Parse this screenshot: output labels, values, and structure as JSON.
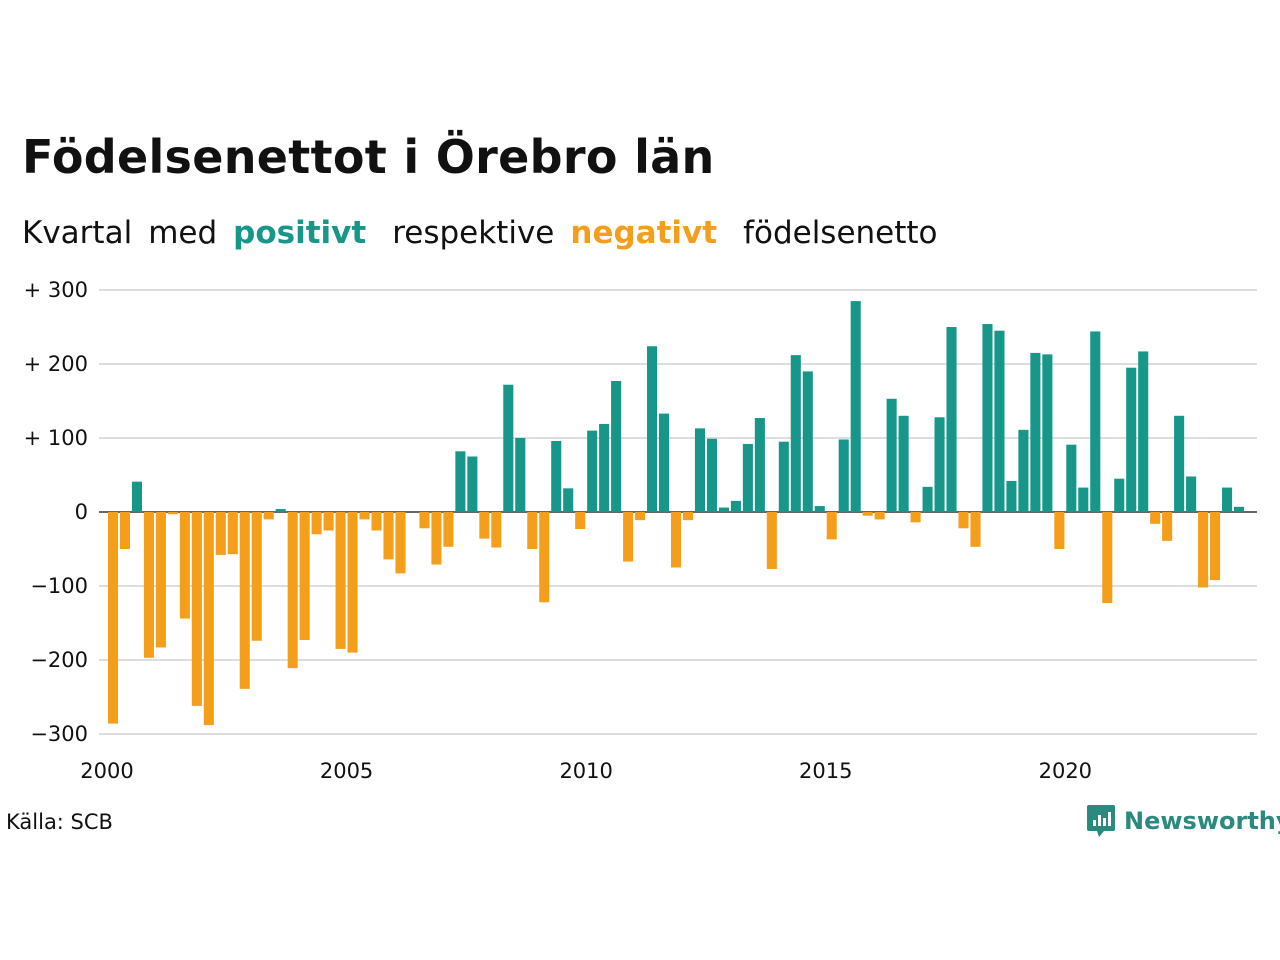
{
  "title": "Födelsenettot i Örebro län",
  "subtitle": {
    "part1": "Kvartal",
    "part2": "med",
    "positive": "positivt",
    "part3": "respektive",
    "negative": "negativt",
    "part4": "födelsenetto"
  },
  "source": "Källa: SCB",
  "brand": "Newsworthy",
  "colors": {
    "positive": "#17968a",
    "negative": "#f59e1c",
    "brand": "#2a8a80"
  },
  "chart_data": {
    "type": "bar",
    "ylim": [
      -300,
      300
    ],
    "y_ticks": [
      300,
      200,
      100,
      0,
      -100,
      -200,
      -300
    ],
    "y_tick_labels": [
      "+ 300",
      "+ 200",
      "+ 100",
      "0",
      "−100",
      "−200",
      "−300"
    ],
    "x_tick_labels": [
      "2000",
      "2005",
      "2010",
      "2015",
      "2020"
    ],
    "grid": true,
    "categories": [
      "2000 Q1",
      "2000 Q2",
      "2000 Q3",
      "2000 Q4",
      "2001 Q1",
      "2001 Q2",
      "2001 Q3",
      "2001 Q4",
      "2002 Q1",
      "2002 Q2",
      "2002 Q3",
      "2002 Q4",
      "2003 Q1",
      "2003 Q2",
      "2003 Q3",
      "2003 Q4",
      "2004 Q1",
      "2004 Q2",
      "2004 Q3",
      "2004 Q4",
      "2005 Q1",
      "2005 Q2",
      "2005 Q3",
      "2005 Q4",
      "2006 Q1",
      "2006 Q2",
      "2006 Q3",
      "2006 Q4",
      "2007 Q1",
      "2007 Q2",
      "2007 Q3",
      "2007 Q4",
      "2008 Q1",
      "2008 Q2",
      "2008 Q3",
      "2008 Q4",
      "2009 Q1",
      "2009 Q2",
      "2009 Q3",
      "2009 Q4",
      "2010 Q1",
      "2010 Q2",
      "2010 Q3",
      "2010 Q4",
      "2011 Q1",
      "2011 Q2",
      "2011 Q3",
      "2011 Q4",
      "2012 Q1",
      "2012 Q2",
      "2012 Q3",
      "2012 Q4",
      "2013 Q1",
      "2013 Q2",
      "2013 Q3",
      "2013 Q4",
      "2014 Q1",
      "2014 Q2",
      "2014 Q3",
      "2014 Q4",
      "2015 Q1",
      "2015 Q2",
      "2015 Q3",
      "2015 Q4",
      "2016 Q1",
      "2016 Q2",
      "2016 Q3",
      "2016 Q4",
      "2017 Q1",
      "2017 Q2",
      "2017 Q3",
      "2017 Q4",
      "2018 Q1",
      "2018 Q2",
      "2018 Q3",
      "2018 Q4",
      "2019 Q1",
      "2019 Q2",
      "2019 Q3",
      "2019 Q4",
      "2020 Q1",
      "2020 Q2",
      "2020 Q3",
      "2020 Q4",
      "2021 Q1",
      "2021 Q2",
      "2021 Q3",
      "2021 Q4",
      "2022 Q1",
      "2022 Q2",
      "2022 Q3",
      "2022 Q4",
      "2023 Q1",
      "2023 Q2",
      "2023 Q3",
      "2023 Q4"
    ],
    "values": [
      -286,
      -50,
      41,
      -197,
      -183,
      -3,
      -144,
      -262,
      -288,
      -58,
      -57,
      -239,
      -174,
      -10,
      4,
      -211,
      -173,
      -30,
      -25,
      -185,
      -190,
      -10,
      -25,
      -64,
      -83,
      0,
      -22,
      -71,
      -47,
      82,
      75,
      -36,
      -48,
      172,
      100,
      -50,
      -122,
      96,
      32,
      -23,
      110,
      119,
      177,
      -67,
      -11,
      224,
      133,
      -75,
      -11,
      113,
      99,
      6,
      15,
      92,
      127,
      -77,
      95,
      212,
      190,
      8,
      -37,
      98,
      285,
      -5,
      -10,
      153,
      130,
      -14,
      34,
      128,
      250,
      -22,
      -47,
      254,
      245,
      42,
      111,
      215,
      213,
      -50,
      91,
      33,
      244,
      -123,
      45,
      195,
      217,
      -16,
      -39,
      130,
      48,
      -102,
      -92,
      33,
      7,
      0
    ]
  }
}
